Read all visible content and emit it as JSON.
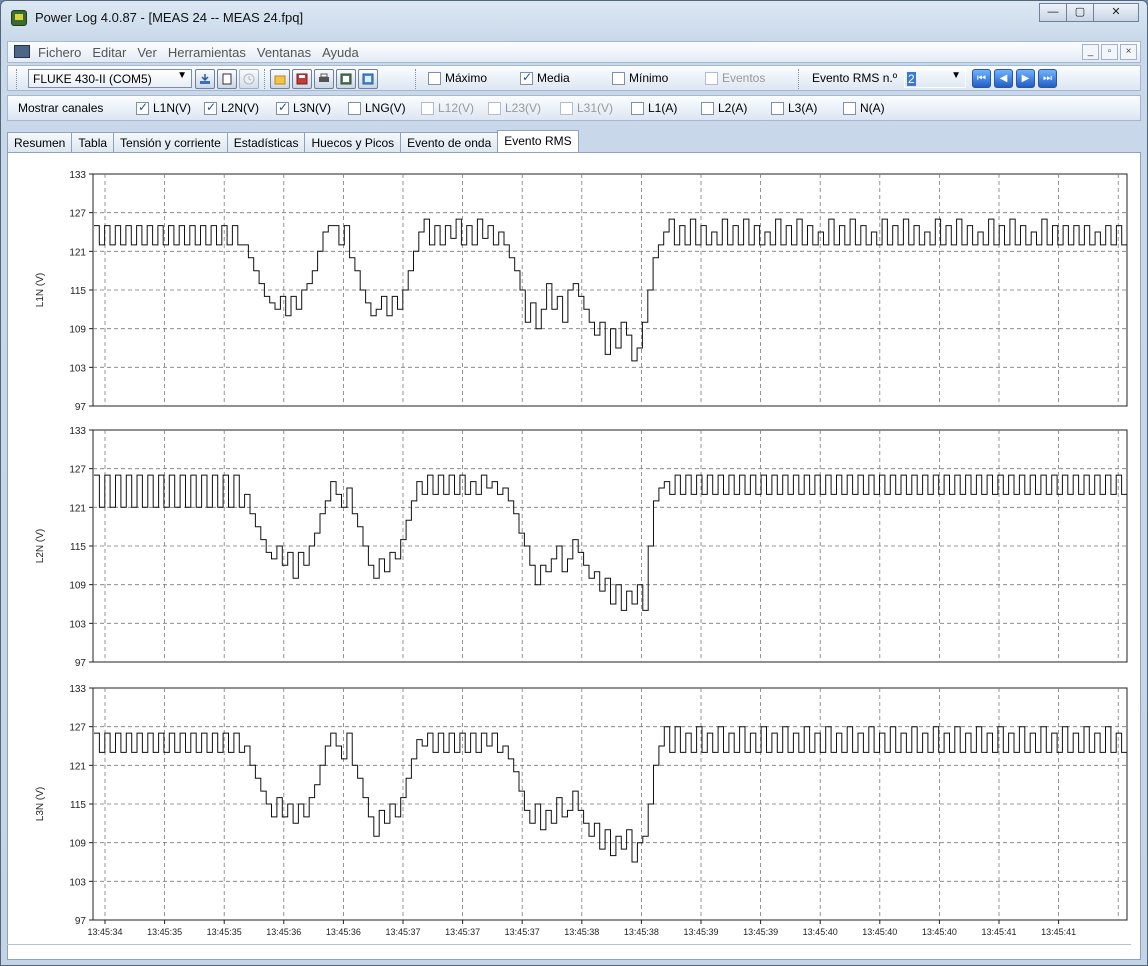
{
  "window": {
    "title": "Power Log 4.0.87 - [MEAS 24 -- MEAS 24.fpq]",
    "min": "—",
    "max": "▢",
    "close": "✕"
  },
  "menu": {
    "items": [
      "Fichero",
      "Editar",
      "Ver",
      "Herramientas",
      "Ventanas",
      "Ayuda"
    ],
    "mdi_min": "_",
    "mdi_restore": "▫",
    "mdi_close": "×"
  },
  "toolbar": {
    "device": "FLUKE 430-II (COM5)",
    "checkboxes": [
      {
        "label": "Máximo",
        "checked": false,
        "enabled": true
      },
      {
        "label": "Media",
        "checked": true,
        "enabled": true
      },
      {
        "label": "Mínimo",
        "checked": false,
        "enabled": true
      },
      {
        "label": "Eventos",
        "checked": false,
        "enabled": false
      }
    ],
    "event_label": "Evento RMS n.º",
    "event_number": "2"
  },
  "channels": {
    "label": "Mostrar canales",
    "items": [
      {
        "label": "L1N(V)",
        "checked": true,
        "enabled": true
      },
      {
        "label": "L2N(V)",
        "checked": true,
        "enabled": true
      },
      {
        "label": "L3N(V)",
        "checked": true,
        "enabled": true
      },
      {
        "label": "LNG(V)",
        "checked": false,
        "enabled": true
      },
      {
        "label": "L12(V)",
        "checked": false,
        "enabled": false
      },
      {
        "label": "L23(V)",
        "checked": false,
        "enabled": false
      },
      {
        "label": "L31(V)",
        "checked": false,
        "enabled": false
      },
      {
        "label": "L1(A)",
        "checked": false,
        "enabled": true
      },
      {
        "label": "L2(A)",
        "checked": false,
        "enabled": true
      },
      {
        "label": "L3(A)",
        "checked": false,
        "enabled": true
      },
      {
        "label": "N(A)",
        "checked": false,
        "enabled": true
      }
    ]
  },
  "tabs": [
    {
      "label": "Resumen",
      "active": false
    },
    {
      "label": "Tabla",
      "active": false
    },
    {
      "label": "Tensión y corriente",
      "active": false
    },
    {
      "label": "Estadísticas",
      "active": false
    },
    {
      "label": "Huecos y Picos",
      "active": false
    },
    {
      "label": "Evento de onda",
      "active": false
    },
    {
      "label": "Evento RMS",
      "active": true
    }
  ],
  "chart_data": [
    {
      "type": "line",
      "ylabel": "L1N (V)",
      "ylim": [
        97,
        133
      ],
      "yticks": [
        97,
        103,
        109,
        115,
        121,
        127,
        133
      ],
      "x_ticks": [
        "13:45:34",
        "13:45:35",
        "13:45:35",
        "13:45:36",
        "13:45:36",
        "13:45:37",
        "13:45:37",
        "13:45:37",
        "13:45:38",
        "13:45:38",
        "13:45:39",
        "13:45:39",
        "13:45:40",
        "13:45:40",
        "13:45:40",
        "13:45:41",
        "13:45:41"
      ],
      "grid": true,
      "series": [
        {
          "values": [
            125,
            122,
            125,
            122,
            125,
            122,
            125,
            122,
            125,
            122,
            125,
            122,
            125,
            122,
            125,
            122,
            125,
            122,
            125,
            122,
            125,
            122,
            125,
            122,
            125,
            122,
            125,
            122,
            122,
            120,
            118,
            116,
            114,
            113,
            112,
            114,
            111,
            114,
            112,
            115,
            116,
            118,
            121,
            124,
            125,
            125,
            122,
            125,
            120,
            118,
            115,
            113,
            111,
            112,
            114,
            111,
            114,
            112,
            115,
            118,
            121,
            124,
            126,
            122,
            125,
            122,
            125,
            123,
            126,
            122,
            125,
            122,
            126,
            123,
            125,
            122,
            124,
            122,
            120,
            118,
            115,
            110,
            113,
            109,
            112,
            116,
            112,
            114,
            110,
            115,
            116,
            114,
            112,
            110,
            108,
            110,
            105,
            109,
            106,
            110,
            108,
            104,
            106,
            110,
            115,
            120,
            122,
            124,
            126,
            122,
            125,
            122,
            126,
            122,
            125,
            122,
            124,
            122,
            126,
            122,
            125,
            122,
            126,
            122,
            125,
            122,
            124,
            122,
            126,
            122,
            125,
            122,
            126,
            122,
            125,
            122,
            124,
            122,
            126,
            122,
            125,
            122,
            126,
            122,
            125,
            122,
            124,
            122,
            126,
            122,
            125,
            122,
            126,
            122,
            125,
            122,
            124,
            122,
            126,
            122,
            125,
            122,
            126,
            122,
            125,
            122,
            124,
            122,
            126,
            122,
            125,
            122,
            126,
            122,
            125,
            122,
            124,
            122,
            126,
            122,
            125,
            122,
            125,
            122,
            125,
            122,
            125,
            122,
            124,
            122,
            125,
            122,
            125,
            122
          ]
        }
      ]
    },
    {
      "type": "line",
      "ylabel": "L2N (V)",
      "ylim": [
        97,
        133
      ],
      "yticks": [
        97,
        103,
        109,
        115,
        121,
        127,
        133
      ],
      "x_ticks": [
        "13:45:34",
        "13:45:35",
        "13:45:35",
        "13:45:36",
        "13:45:36",
        "13:45:37",
        "13:45:37",
        "13:45:37",
        "13:45:38",
        "13:45:38",
        "13:45:39",
        "13:45:39",
        "13:45:40",
        "13:45:40",
        "13:45:40",
        "13:45:41",
        "13:45:41"
      ],
      "grid": true,
      "series": [
        {
          "values": [
            126,
            121,
            126,
            121,
            126,
            121,
            126,
            121,
            126,
            121,
            126,
            121,
            126,
            121,
            126,
            121,
            126,
            121,
            126,
            121,
            126,
            121,
            126,
            121,
            126,
            121,
            126,
            121,
            123,
            120,
            118,
            116,
            114,
            113,
            115,
            112,
            114,
            110,
            114,
            112,
            115,
            117,
            120,
            122,
            125,
            123,
            121,
            124,
            120,
            118,
            115,
            112,
            110,
            113,
            111,
            114,
            113,
            116,
            119,
            122,
            125,
            123,
            126,
            123,
            126,
            123,
            126,
            123,
            126,
            123,
            125,
            123,
            126,
            124,
            125,
            123,
            124,
            122,
            120,
            117,
            115,
            112,
            109,
            112,
            111,
            113,
            115,
            111,
            113,
            116,
            114,
            112,
            110,
            111,
            108,
            110,
            106,
            109,
            105,
            108,
            106,
            109,
            105,
            115,
            122,
            124,
            125,
            123,
            126,
            123,
            126,
            123,
            126,
            123,
            126,
            123,
            126,
            123,
            126,
            123,
            126,
            123,
            126,
            123,
            126,
            123,
            126,
            123,
            126,
            123,
            126,
            123,
            126,
            123,
            126,
            123,
            126,
            123,
            126,
            123,
            126,
            123,
            126,
            123,
            126,
            123,
            126,
            123,
            126,
            123,
            126,
            123,
            126,
            123,
            126,
            123,
            126,
            123,
            126,
            123,
            126,
            123,
            126,
            123,
            126,
            123,
            126,
            123,
            126,
            123,
            126,
            123,
            126,
            123,
            126,
            123,
            126,
            123,
            126,
            123,
            126,
            123,
            126,
            123,
            126,
            123,
            126,
            123,
            126,
            123,
            126,
            123
          ]
        }
      ]
    },
    {
      "type": "line",
      "ylabel": "L3N (V)",
      "ylim": [
        97,
        133
      ],
      "yticks": [
        97,
        103,
        109,
        115,
        121,
        127,
        133
      ],
      "x_ticks": [
        "13:45:34",
        "13:45:35",
        "13:45:35",
        "13:45:36",
        "13:45:36",
        "13:45:37",
        "13:45:37",
        "13:45:37",
        "13:45:38",
        "13:45:38",
        "13:45:39",
        "13:45:39",
        "13:45:40",
        "13:45:40",
        "13:45:40",
        "13:45:41",
        "13:45:41"
      ],
      "grid": true,
      "series": [
        {
          "values": [
            126,
            123,
            126,
            123,
            126,
            123,
            126,
            123,
            126,
            123,
            126,
            123,
            126,
            123,
            126,
            123,
            126,
            123,
            126,
            123,
            126,
            123,
            126,
            123,
            126,
            123,
            126,
            123,
            124,
            121,
            119,
            117,
            115,
            113,
            116,
            113,
            115,
            112,
            115,
            113,
            116,
            118,
            121,
            124,
            126,
            124,
            122,
            126,
            121,
            119,
            116,
            113,
            110,
            114,
            112,
            115,
            113,
            116,
            119,
            122,
            125,
            124,
            126,
            123,
            126,
            123,
            126,
            123,
            126,
            123,
            126,
            123,
            126,
            124,
            126,
            123,
            124,
            122,
            120,
            117,
            114,
            112,
            115,
            111,
            114,
            112,
            116,
            113,
            114,
            117,
            114,
            112,
            110,
            112,
            108,
            111,
            107,
            110,
            108,
            111,
            106,
            109,
            110,
            115,
            121,
            124,
            127,
            123,
            127,
            123,
            126,
            123,
            127,
            123,
            126,
            123,
            127,
            123,
            126,
            123,
            127,
            123,
            126,
            123,
            127,
            123,
            126,
            123,
            127,
            123,
            126,
            123,
            127,
            123,
            126,
            123,
            127,
            123,
            126,
            123,
            127,
            123,
            126,
            123,
            127,
            123,
            126,
            123,
            127,
            123,
            126,
            123,
            127,
            123,
            126,
            123,
            127,
            123,
            126,
            123,
            127,
            123,
            126,
            123,
            127,
            123,
            126,
            123,
            127,
            123,
            126,
            123,
            127,
            123,
            126,
            123,
            127,
            123,
            126,
            123,
            127,
            123,
            126,
            123,
            127,
            123,
            126,
            123,
            127,
            123,
            126,
            123
          ]
        }
      ]
    }
  ]
}
